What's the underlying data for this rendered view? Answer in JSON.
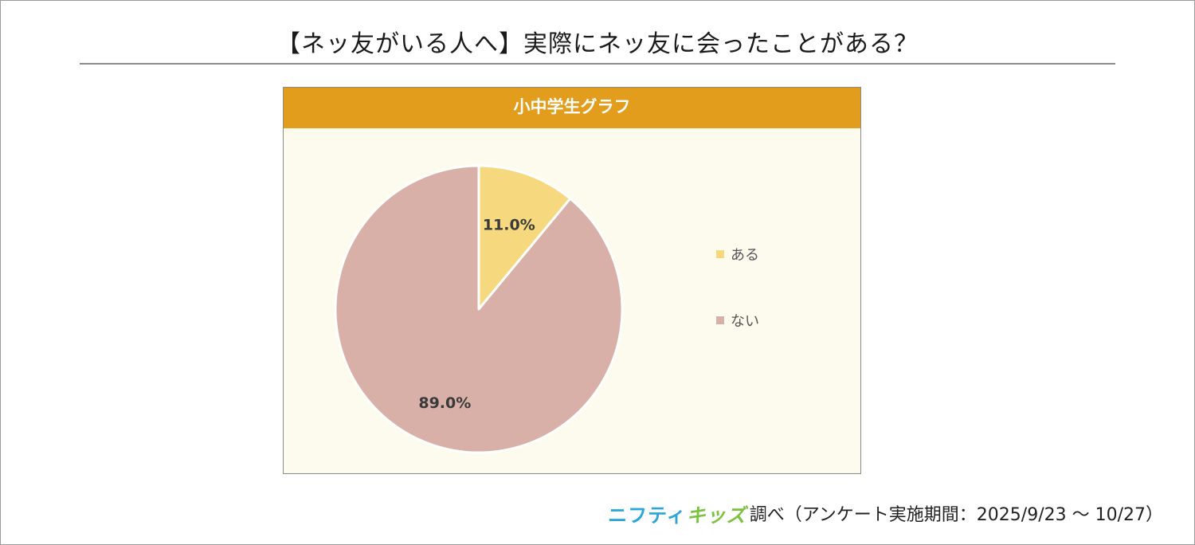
{
  "page": {
    "title": "【ネッ友がいる人へ】実際にネッ友に会ったことがある？"
  },
  "panel": {
    "header": "小中学生グラフ"
  },
  "chart_data": {
    "type": "pie",
    "title": "小中学生グラフ",
    "categories": [
      "ある",
      "ない"
    ],
    "values": [
      11.0,
      89.0
    ],
    "labels": [
      "11.0%",
      "89.0%"
    ],
    "colors": [
      "#f6d97f",
      "#d9b0a8"
    ],
    "legend_position": "right",
    "start_angle": "12 o'clock, clockwise"
  },
  "footer": {
    "brand_part1": "ニフティ",
    "brand_part2": "キッズ",
    "note": "調べ（アンケート実施期間：2025/9/23 ～ 10/27）"
  }
}
